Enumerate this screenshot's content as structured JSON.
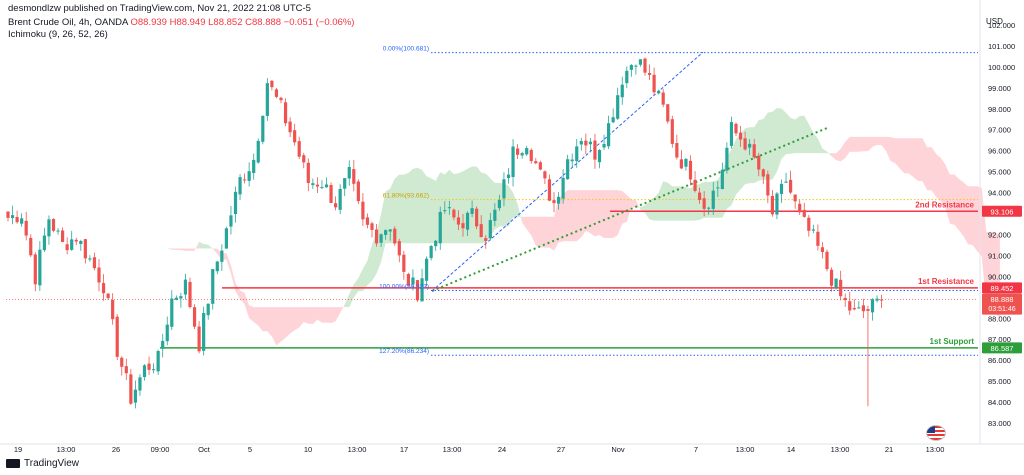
{
  "header": {
    "publisher": "desmondlzw published on TradingView.com, Nov 21, 2022 21:08 UTC-5",
    "symbol": "Brent Crude Oil, 4h, OANDA",
    "ohlc": "O88.939  H88.949  L88.852  C88.888  −0.051 (−0.06%)",
    "indicator": "Ichimoku (9, 26, 52, 26)"
  },
  "footer": {
    "brand": "TradingView"
  },
  "chart_data": {
    "type": "candlestick",
    "title": "Brent Crude Oil, 4h, OANDA",
    "ylabel": "USD",
    "ylim": [
      82.6,
      103.3
    ],
    "y_ticks": [
      83,
      84,
      85,
      86,
      87,
      88,
      89,
      90,
      91,
      92,
      93,
      94,
      95,
      96,
      97,
      98,
      99,
      100,
      101,
      102
    ],
    "x_ticks": [
      "19",
      "13:00",
      "26",
      "09:00",
      "Oct",
      "5",
      "10",
      "13:00",
      "17",
      "13:00",
      "24",
      "27",
      "Nov",
      "7",
      "13:00",
      "14",
      "13:00",
      "21",
      "13:00"
    ],
    "price_path": [
      [
        0,
        92.8
      ],
      [
        3,
        93.0
      ],
      [
        6,
        90.0
      ],
      [
        9,
        92.8
      ],
      [
        12,
        91.5
      ],
      [
        15,
        91.9
      ],
      [
        18,
        90.8
      ],
      [
        21,
        89.6
      ],
      [
        24,
        86.5
      ],
      [
        27,
        84.2
      ],
      [
        30,
        85.6
      ],
      [
        33,
        86.0
      ],
      [
        36,
        88.9
      ],
      [
        39,
        89.6
      ],
      [
        42,
        86.8
      ],
      [
        45,
        90.0
      ],
      [
        48,
        92.2
      ],
      [
        51,
        94.6
      ],
      [
        54,
        95.6
      ],
      [
        57,
        99.3
      ],
      [
        60,
        98.0
      ],
      [
        63,
        96.4
      ],
      [
        66,
        94.5
      ],
      [
        69,
        94.5
      ],
      [
        72,
        93.5
      ],
      [
        75,
        94.8
      ],
      [
        78,
        92.5
      ],
      [
        81,
        92.0
      ],
      [
        84,
        92.5
      ],
      [
        87,
        90.0
      ],
      [
        90,
        89.3
      ],
      [
        93,
        91.5
      ],
      [
        96,
        93.2
      ],
      [
        99,
        92.5
      ],
      [
        102,
        92.9
      ],
      [
        105,
        92.0
      ],
      [
        108,
        93.5
      ],
      [
        111,
        95.9
      ],
      [
        114,
        96.5
      ],
      [
        117,
        94.8
      ],
      [
        120,
        93.5
      ],
      [
        123,
        95.6
      ],
      [
        126,
        96.7
      ],
      [
        129,
        95.9
      ],
      [
        132,
        97.2
      ],
      [
        135,
        99.5
      ],
      [
        138,
        100.5
      ],
      [
        141,
        99.4
      ],
      [
        144,
        98.0
      ],
      [
        147,
        95.8
      ],
      [
        150,
        95.0
      ],
      [
        153,
        93.4
      ],
      [
        156,
        94.3
      ],
      [
        159,
        97.0
      ],
      [
        162,
        96.4
      ],
      [
        165,
        95.1
      ],
      [
        168,
        93.0
      ],
      [
        171,
        94.6
      ],
      [
        174,
        92.8
      ],
      [
        177,
        91.8
      ],
      [
        180,
        90.4
      ],
      [
        183,
        89.0
      ],
      [
        186,
        88.2
      ],
      [
        189,
        88.4
      ],
      [
        192,
        88.9
      ]
    ],
    "ichimoku_cloud_colors": {
      "bullish": "#c8e6c9",
      "bearish": "#ffcdd2"
    },
    "fibonacci": [
      {
        "label": "0.00%(100.681)",
        "value": 100.681
      },
      {
        "label": "61.80%(93.662)",
        "value": 93.662
      },
      {
        "label": "100.00%(89.323)",
        "value": 89.323
      },
      {
        "label": "127.20%(86.234)",
        "value": 86.234
      }
    ],
    "levels": [
      {
        "name": "2nd Resistance",
        "value": 93.106,
        "label": "93.106",
        "color": "#f23645"
      },
      {
        "name": "1st Resistance",
        "value": 89.452,
        "label": "89.452",
        "color": "#f23645"
      },
      {
        "name": "1st Support",
        "value": 86.587,
        "label": "86.587",
        "color": "#2e9e3a"
      }
    ],
    "last_price": {
      "value": 88.888,
      "label": "88.888",
      "countdown": "03:51:46"
    },
    "colors": {
      "up": "#26a69a",
      "down": "#ef5350"
    }
  }
}
